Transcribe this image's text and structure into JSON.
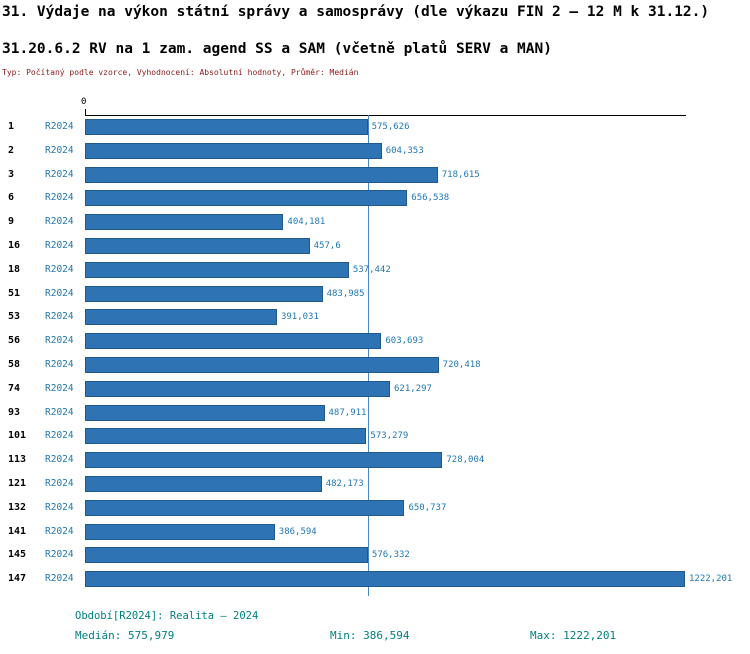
{
  "header": {
    "title": "31. Výdaje na výkon státní správy a samosprávy (dle výkazu FIN 2 – 12 M k 31.12.)",
    "subtitle": "31.20.6.2 RV na 1 zam. agend SS a SAM (včetně platů SERV a MAN)",
    "meta": "Typ: Počítaný podle vzorce, Vyhodnocení: Absolutní hodnoty, Průměr: Medián"
  },
  "chart_data": {
    "type": "bar",
    "orientation": "horizontal",
    "series_name": "R2024",
    "axis": {
      "origin_label": "0",
      "max": 1222.201
    },
    "median": {
      "value": 575.979
    },
    "legend_position": "none",
    "grid": false,
    "categories": [
      "1",
      "2",
      "3",
      "6",
      "9",
      "16",
      "18",
      "51",
      "53",
      "56",
      "58",
      "74",
      "93",
      "101",
      "113",
      "121",
      "132",
      "141",
      "145",
      "147"
    ],
    "rows": [
      {
        "rank": "1",
        "series": "R2024",
        "value": 575.626,
        "value_label": "575,626"
      },
      {
        "rank": "2",
        "series": "R2024",
        "value": 604.353,
        "value_label": "604,353"
      },
      {
        "rank": "3",
        "series": "R2024",
        "value": 718.615,
        "value_label": "718,615"
      },
      {
        "rank": "6",
        "series": "R2024",
        "value": 656.538,
        "value_label": "656,538"
      },
      {
        "rank": "9",
        "series": "R2024",
        "value": 404.181,
        "value_label": "404,181"
      },
      {
        "rank": "16",
        "series": "R2024",
        "value": 457.6,
        "value_label": "457,6"
      },
      {
        "rank": "18",
        "series": "R2024",
        "value": 537.442,
        "value_label": "537,442"
      },
      {
        "rank": "51",
        "series": "R2024",
        "value": 483.985,
        "value_label": "483,985"
      },
      {
        "rank": "53",
        "series": "R2024",
        "value": 391.031,
        "value_label": "391,031"
      },
      {
        "rank": "56",
        "series": "R2024",
        "value": 603.693,
        "value_label": "603,693"
      },
      {
        "rank": "58",
        "series": "R2024",
        "value": 720.418,
        "value_label": "720,418"
      },
      {
        "rank": "74",
        "series": "R2024",
        "value": 621.297,
        "value_label": "621,297"
      },
      {
        "rank": "93",
        "series": "R2024",
        "value": 487.911,
        "value_label": "487,911"
      },
      {
        "rank": "101",
        "series": "R2024",
        "value": 573.279,
        "value_label": "573,279"
      },
      {
        "rank": "113",
        "series": "R2024",
        "value": 728.004,
        "value_label": "728,004"
      },
      {
        "rank": "121",
        "series": "R2024",
        "value": 482.173,
        "value_label": "482,173"
      },
      {
        "rank": "132",
        "series": "R2024",
        "value": 650.737,
        "value_label": "650,737"
      },
      {
        "rank": "141",
        "series": "R2024",
        "value": 386.594,
        "value_label": "386,594"
      },
      {
        "rank": "145",
        "series": "R2024",
        "value": 576.332,
        "value_label": "576,332"
      },
      {
        "rank": "147",
        "series": "R2024",
        "value": 1222.201,
        "value_label": "1222,201"
      }
    ],
    "footer": {
      "period": "Období[R2024]: Realita – 2024",
      "median": "Medián: 575,979",
      "min": "Min: 386,594",
      "max": "Max: 1222,201"
    },
    "colors": {
      "bar": "#2e74b5",
      "bar_border": "#205a8c",
      "median_line": "#4a86c8",
      "value_text": "#1f77b4",
      "footer_text": "#008080",
      "meta_text": "#8b1a1a"
    }
  }
}
